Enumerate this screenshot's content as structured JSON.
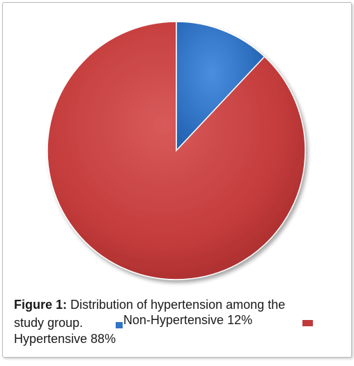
{
  "chart_data": {
    "type": "pie",
    "categories": [
      "Non-Hypertensive",
      "Hypertensive"
    ],
    "values": [
      12,
      88
    ],
    "colors": [
      "#2e74c8",
      "#c0393b"
    ],
    "legend": [
      "Non-Hypertensive 12%",
      "Hypertensive 88%"
    ],
    "legend_placement": "bottom"
  },
  "caption": {
    "label": "Figure 1:",
    "text_line1": "Distribution of hypertension among the",
    "text_line2": "study group."
  }
}
